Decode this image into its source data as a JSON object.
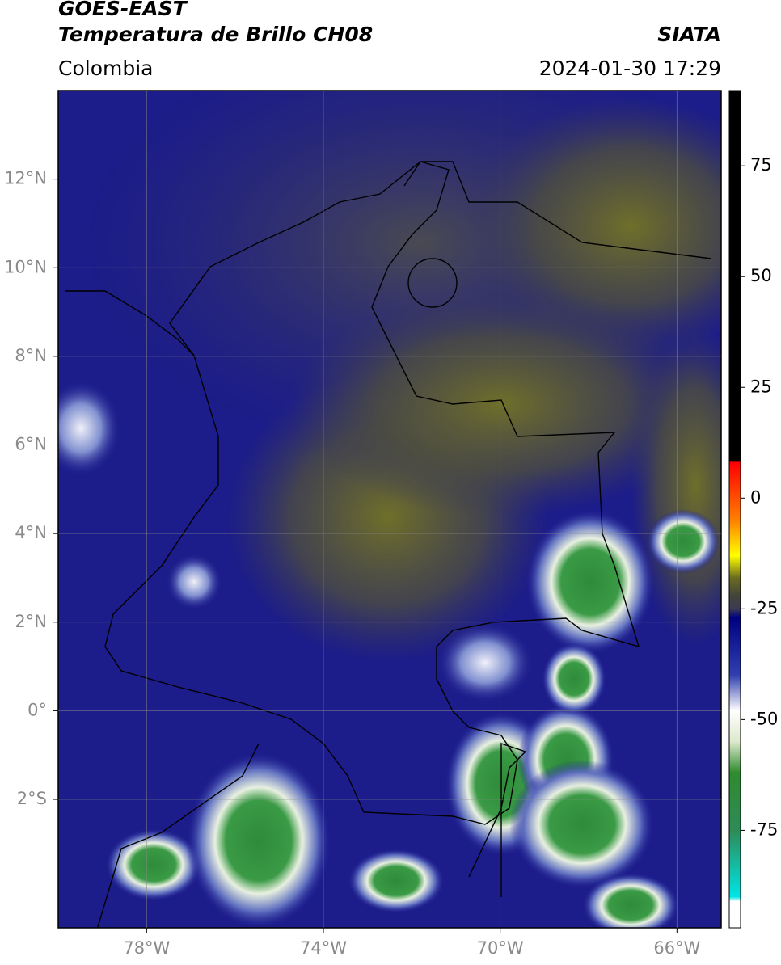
{
  "header": {
    "title": "GOES-EAST",
    "subtitle": "Temperatura de Brillo CH08",
    "source": "SIATA",
    "region": "Colombia",
    "datetime": "2024-01-30 17:29"
  },
  "map": {
    "xlim": [
      -80,
      -65
    ],
    "ylim": [
      -4.9,
      14
    ],
    "xticks": [
      {
        "value": -78,
        "label": "78°W"
      },
      {
        "value": -74,
        "label": "74°W"
      },
      {
        "value": -70,
        "label": "70°W"
      },
      {
        "value": -66,
        "label": "66°W"
      }
    ],
    "yticks": [
      {
        "value": 12,
        "label": "12°N"
      },
      {
        "value": 10,
        "label": "10°N"
      },
      {
        "value": 8,
        "label": "8°N"
      },
      {
        "value": 6,
        "label": "6°N"
      },
      {
        "value": 4,
        "label": "4°N"
      },
      {
        "value": 2,
        "label": "2°N"
      },
      {
        "value": 0,
        "label": "0°"
      },
      {
        "value": -2,
        "label": "2°S"
      }
    ],
    "grid": true
  },
  "colorbar": {
    "lim": [
      -97,
      92
    ],
    "ticks": [
      75,
      50,
      25,
      0,
      -25,
      -50,
      -75
    ],
    "stops": [
      {
        "value": 92,
        "color": "#000000"
      },
      {
        "value": 8.5,
        "color": "#000000"
      },
      {
        "value": 8,
        "color": "#ff0000"
      },
      {
        "value": -5,
        "color": "#ff8000"
      },
      {
        "value": -13,
        "color": "#ffff00"
      },
      {
        "value": -18,
        "color": "#6b6b20"
      },
      {
        "value": -22,
        "color": "#44443a"
      },
      {
        "value": -25,
        "color": "#3a3a55"
      },
      {
        "value": -27,
        "color": "#00007f"
      },
      {
        "value": -40,
        "color": "#3040b0"
      },
      {
        "value": -48,
        "color": "#ffffff"
      },
      {
        "value": -55,
        "color": "#dde8cc"
      },
      {
        "value": -62,
        "color": "#2e8b2e"
      },
      {
        "value": -75,
        "color": "#2e8b57"
      },
      {
        "value": -90,
        "color": "#00e5e5"
      },
      {
        "value": -91,
        "color": "#ffffff"
      },
      {
        "value": -97,
        "color": "#ffffff"
      }
    ]
  }
}
